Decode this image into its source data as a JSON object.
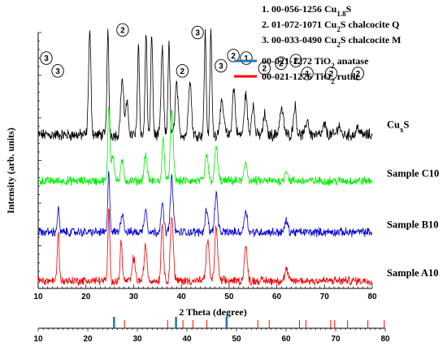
{
  "chart_data": {
    "type": "line",
    "xlabel": "2 Theta (degree)",
    "ylabel": "Intensity (arb. units)",
    "xlim": [
      10,
      80
    ],
    "x_ticks": [
      "10",
      "20",
      "30",
      "40",
      "50",
      "60",
      "70",
      "80"
    ],
    "ref_x_ticks": [
      "10",
      "20",
      "30",
      "40",
      "50",
      "60",
      "70",
      "80"
    ],
    "legend": [
      {
        "label": "1. 00-056-1256 Cu",
        "sub": "1.8",
        "tail": "S"
      },
      {
        "label": "2. 01-072-1071 Cu",
        "sub": "2",
        "tail": "S chalcocite Q"
      },
      {
        "label": "3. 00-033-0490 Cu",
        "sub": "2",
        "tail": "S chalcocite M"
      },
      {
        "label": "00-021-1272 TiO",
        "sub": "2",
        "tail": " anatase",
        "color": "#1f77b4"
      },
      {
        "label": "00-021-1276 TiO",
        "sub": "2",
        "tail": " rutile",
        "color": "#ff0000"
      }
    ],
    "series": [
      {
        "name": "CuxS",
        "label_main": "Cu",
        "label_sub": "x",
        "label_tail": "S",
        "color": "#000000",
        "offset": 0.6,
        "amp": 0.4,
        "peaks": [
          [
            20.8,
            1.0,
            0.25
          ],
          [
            24.6,
            1.0,
            0.2
          ],
          [
            27.6,
            0.55,
            0.3
          ],
          [
            28.6,
            0.3,
            0.3
          ],
          [
            31.0,
            0.9,
            0.2
          ],
          [
            32.6,
            1.0,
            0.2
          ],
          [
            33.8,
            1.0,
            0.2
          ],
          [
            36.0,
            0.85,
            0.25
          ],
          [
            37.4,
            0.9,
            0.2
          ],
          [
            39.0,
            0.5,
            0.3
          ],
          [
            41.8,
            0.55,
            0.3
          ],
          [
            45.0,
            1.0,
            0.2
          ],
          [
            46.2,
            1.0,
            0.2
          ],
          [
            48.5,
            0.3,
            0.4
          ],
          [
            51.0,
            0.45,
            0.3
          ],
          [
            53.5,
            0.4,
            0.3
          ],
          [
            55.0,
            0.3,
            0.3
          ],
          [
            57.5,
            0.2,
            0.3
          ],
          [
            61.0,
            0.25,
            0.4
          ],
          [
            63.8,
            0.28,
            0.3
          ],
          [
            66.4,
            0.15,
            0.3
          ],
          [
            70.0,
            0.1,
            0.3
          ],
          [
            73.0,
            0.1,
            0.3
          ],
          [
            77.0,
            0.08,
            0.3
          ]
        ]
      },
      {
        "name": "Sample C10",
        "color": "#00ee00",
        "offset": 0.42,
        "amp": 0.3,
        "peaks": [
          [
            24.8,
            1.0,
            0.2
          ],
          [
            25.6,
            0.35,
            0.3
          ],
          [
            27.6,
            0.25,
            0.3
          ],
          [
            32.5,
            0.35,
            0.3
          ],
          [
            36.2,
            0.55,
            0.25
          ],
          [
            38.0,
            0.9,
            0.3
          ],
          [
            45.3,
            0.35,
            0.3
          ],
          [
            47.3,
            0.45,
            0.3
          ],
          [
            53.5,
            0.25,
            0.3
          ],
          [
            62.0,
            0.15,
            0.3
          ]
        ]
      },
      {
        "name": "Sample B10",
        "color": "#0000dd",
        "offset": 0.22,
        "amp": 0.3,
        "peaks": [
          [
            14.2,
            0.3,
            0.2
          ],
          [
            24.8,
            0.8,
            0.2
          ],
          [
            27.6,
            0.25,
            0.3
          ],
          [
            32.5,
            0.3,
            0.3
          ],
          [
            36.0,
            0.35,
            0.3
          ],
          [
            38.0,
            0.7,
            0.3
          ],
          [
            45.3,
            0.3,
            0.3
          ],
          [
            47.3,
            0.5,
            0.3
          ],
          [
            53.5,
            0.3,
            0.3
          ],
          [
            62.0,
            0.15,
            0.3
          ]
        ]
      },
      {
        "name": "Sample A10",
        "color": "#ee0000",
        "offset": 0.03,
        "amp": 0.3,
        "peaks": [
          [
            14.2,
            0.65,
            0.2
          ],
          [
            24.8,
            0.9,
            0.2
          ],
          [
            27.4,
            0.55,
            0.2
          ],
          [
            30.0,
            0.3,
            0.3
          ],
          [
            32.5,
            0.45,
            0.3
          ],
          [
            36.0,
            0.75,
            0.25
          ],
          [
            38.0,
            0.85,
            0.3
          ],
          [
            45.5,
            0.55,
            0.3
          ],
          [
            47.3,
            0.7,
            0.3
          ],
          [
            53.5,
            0.45,
            0.3
          ],
          [
            62.0,
            0.15,
            0.3
          ]
        ]
      }
    ],
    "phase_markers": [
      {
        "x": 11.7,
        "level": 0.9,
        "label": "3"
      },
      {
        "x": 14.1,
        "level": 0.85,
        "label": "3"
      },
      {
        "x": 23.4,
        "level": 1.18,
        "label": "3"
      },
      {
        "x": 26.0,
        "level": 1.18,
        "label": "1"
      },
      {
        "x": 27.7,
        "level": 1.01,
        "label": "2"
      },
      {
        "x": 32.1,
        "level": 1.17,
        "label": "1"
      },
      {
        "x": 33.7,
        "level": 1.24,
        "label": "3"
      },
      {
        "x": 36.0,
        "level": 1.16,
        "label": "3"
      },
      {
        "x": 37.6,
        "level": 1.18,
        "label": "2"
      },
      {
        "x": 40.2,
        "level": 1.16,
        "label": "3"
      },
      {
        "x": 44.5,
        "level": 1.16,
        "label": "2"
      },
      {
        "x": 45.6,
        "level": 1.23,
        "label": "1"
      },
      {
        "x": 43.4,
        "level": 1.0,
        "label": "3"
      },
      {
        "x": 40.2,
        "level": 0.85,
        "label": "2"
      },
      {
        "x": 48.3,
        "level": 0.87,
        "label": "3"
      },
      {
        "x": 50.9,
        "level": 0.91,
        "label": "2"
      },
      {
        "x": 53.6,
        "level": 0.9,
        "label": "1"
      },
      {
        "x": 57.4,
        "level": 0.86,
        "label": "2"
      },
      {
        "x": 60.9,
        "level": 0.88,
        "label": "2"
      },
      {
        "x": 64.0,
        "level": 0.89,
        "label": "2"
      },
      {
        "x": 66.4,
        "level": 0.84,
        "label": "1"
      },
      {
        "x": 71.4,
        "level": 0.84,
        "label": "2"
      },
      {
        "x": 77.0,
        "level": 0.84,
        "label": "2"
      }
    ],
    "anatase_ref": [
      25.3,
      37.8,
      48.0
    ],
    "rutile_ref": [
      27.4,
      36.1,
      39.2,
      41.2,
      44.0,
      54.3,
      56.6,
      62.7,
      64.0,
      69.0,
      69.8,
      72.4,
      76.5,
      79.8
    ],
    "anatase_color": "#1f77b4",
    "rutile_color": "#ff0000"
  }
}
